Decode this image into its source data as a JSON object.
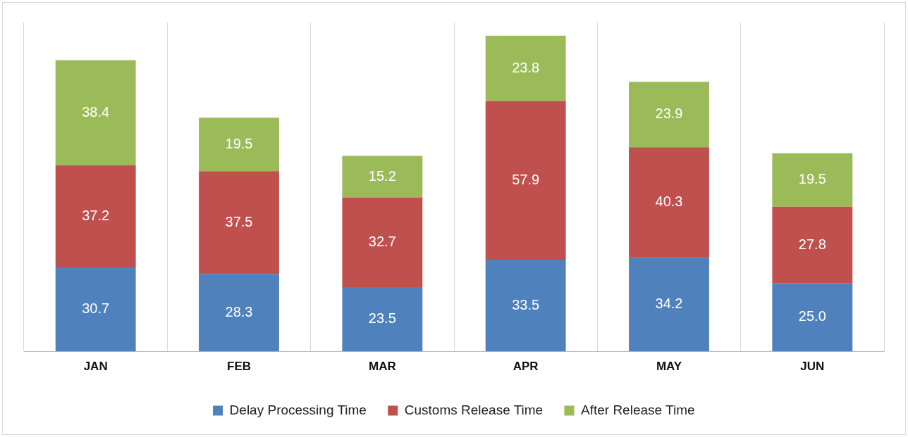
{
  "chart_data": {
    "type": "bar",
    "stacked": true,
    "categories": [
      "JAN",
      "FEB",
      "MAR",
      "APR",
      "MAY",
      "JUN"
    ],
    "series": [
      {
        "name": "Delay Processing Time",
        "color": "#4f81bd",
        "values": [
          30.7,
          28.3,
          23.5,
          33.5,
          34.2,
          25.0
        ],
        "value_labels": [
          "30.7",
          "28.3",
          "23.5",
          "33.5",
          "34.2",
          "25.0"
        ]
      },
      {
        "name": "Customs Release Time",
        "color": "#c0504d",
        "values": [
          37.2,
          37.5,
          32.7,
          57.9,
          40.3,
          27.8
        ],
        "value_labels": [
          "37.2",
          "37.5",
          "32.7",
          "57.9",
          "40.3",
          "27.8"
        ]
      },
      {
        "name": "After Release Time",
        "color": "#9bbb59",
        "values": [
          38.4,
          19.5,
          15.2,
          23.8,
          23.9,
          19.5
        ],
        "value_labels": [
          "38.4",
          "19.5",
          "15.2",
          "23.8",
          "23.9",
          "19.5"
        ]
      }
    ],
    "grid": "x",
    "legend": "bottom",
    "tick_labels": "x"
  }
}
